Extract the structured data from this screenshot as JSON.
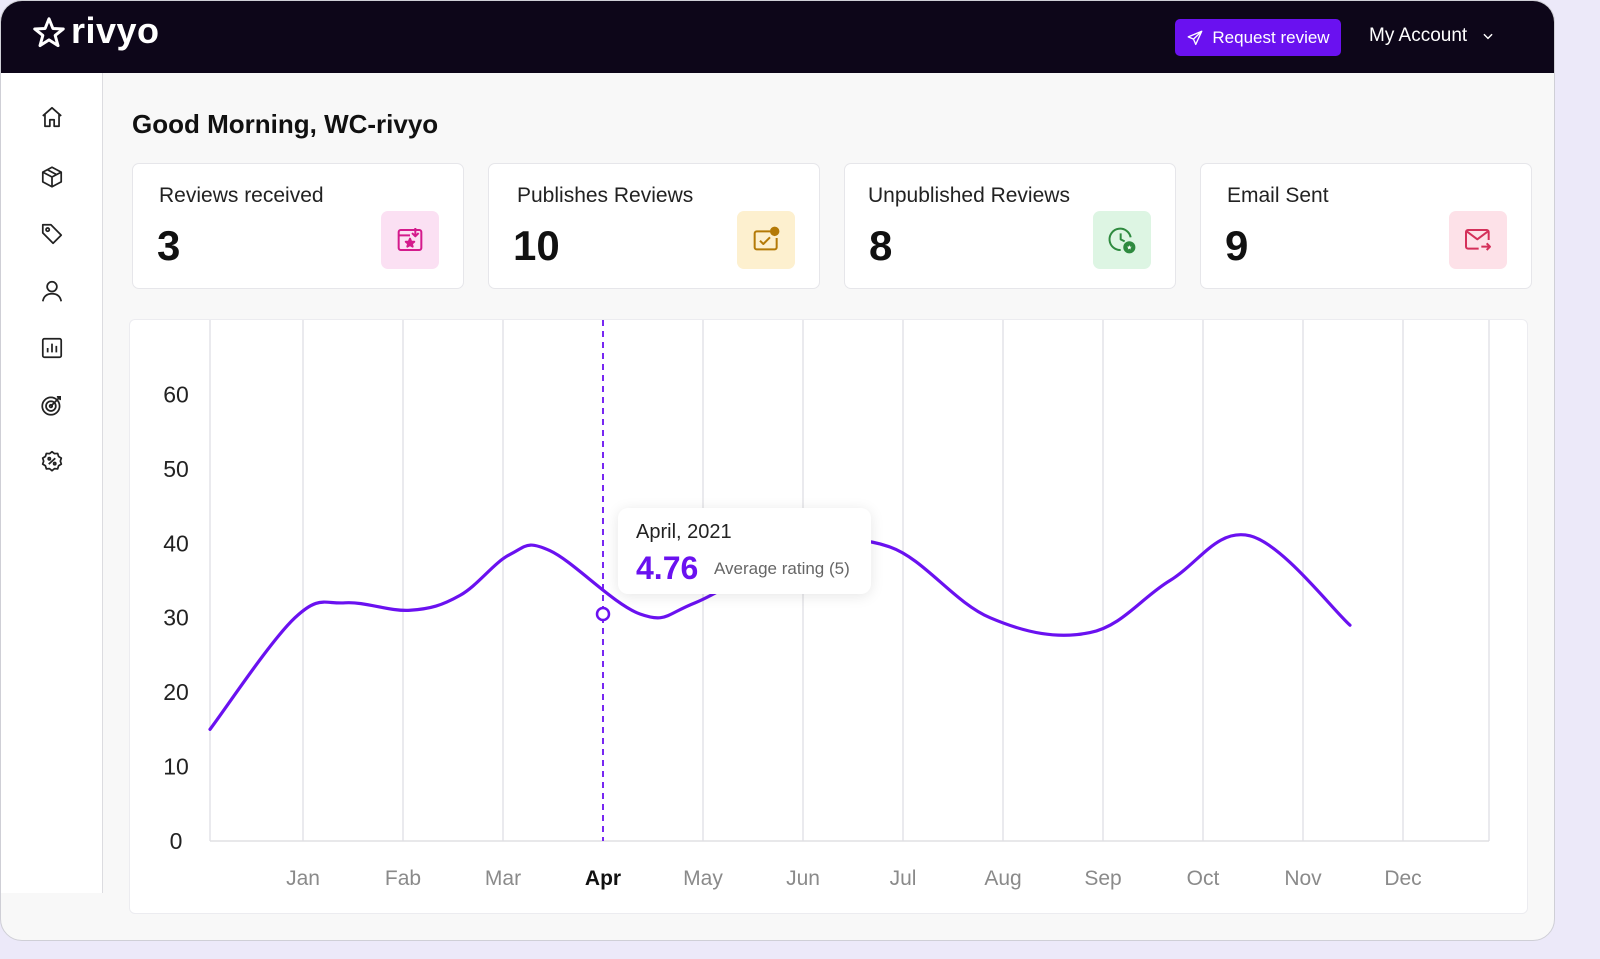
{
  "app": {
    "brand": "rivyo",
    "accent": "#6a11f0"
  },
  "header": {
    "request_label": "Request review",
    "account_label": "My Account"
  },
  "sidebar": {
    "items": [
      {
        "name": "home-icon"
      },
      {
        "name": "box-icon"
      },
      {
        "name": "tag-icon"
      },
      {
        "name": "user-icon"
      },
      {
        "name": "chart-icon"
      },
      {
        "name": "target-icon"
      },
      {
        "name": "discount-icon"
      }
    ]
  },
  "greeting": "Good Morning, WC-rivyo",
  "stats": [
    {
      "label": "Reviews received",
      "value": "3",
      "icon": "star-calendar-icon",
      "color": "#fbe0f3"
    },
    {
      "label": "Publishes Reviews",
      "value": "10",
      "icon": "published-icon",
      "color": "#fdf0cf"
    },
    {
      "label": "Unpublished Reviews",
      "value": "8",
      "icon": "clock-star-icon",
      "color": "#ddf5e3"
    },
    {
      "label": "Email Sent",
      "value": "9",
      "icon": "mail-send-icon",
      "color": "#fde1e8"
    }
  ],
  "tooltip": {
    "date": "April, 2021",
    "value": "4.76",
    "label": "Average rating (5)"
  },
  "chart_data": {
    "type": "line",
    "categories": [
      "Jan",
      "Fab",
      "Mar",
      "Apr",
      "May",
      "Jun",
      "Jul",
      "Aug",
      "Sep",
      "Oct",
      "Nov",
      "Dec"
    ],
    "highlight": "Apr",
    "y_ticks": [
      "0",
      "10",
      "20",
      "30",
      "40",
      "50",
      "60"
    ],
    "ylim": [
      0,
      70
    ],
    "series": [
      {
        "x": [
          0,
          0.85,
          1.35,
          2.0,
          2.5,
          3.0,
          3.4,
          4.3,
          4.85,
          5.9,
          6.8,
          7.8,
          8.8,
          9.6,
          10.4,
          11.4
        ],
        "y": [
          15,
          30,
          32,
          31,
          33,
          38.5,
          39,
          30.5,
          32,
          39,
          39.5,
          30,
          28,
          35,
          41,
          29
        ]
      }
    ],
    "line_color": "#6a11f0",
    "grid": true
  }
}
